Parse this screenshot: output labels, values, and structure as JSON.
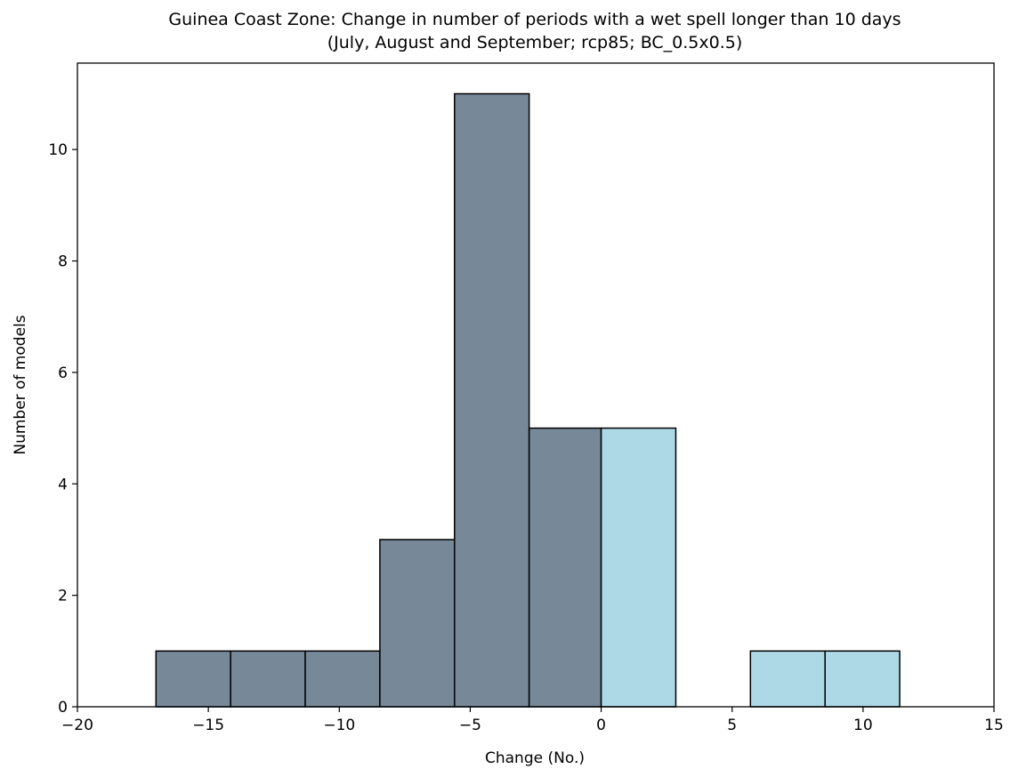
{
  "chart_data": {
    "type": "bar",
    "title": "Guinea Coast Zone: Change in number of periods with a wet spell longer than 10 days",
    "subtitle": "(July, August and September; rcp85; BC_0.5x0.5)",
    "xlabel": "Change (No.)",
    "ylabel": "Number of models",
    "xlim": [
      -20,
      15
    ],
    "ylim": [
      0,
      11.55
    ],
    "xticks": [
      -20,
      -15,
      -10,
      -5,
      0,
      5,
      10,
      15
    ],
    "xtick_labels": [
      "−20",
      "−15",
      "−10",
      "−5",
      "0",
      "5",
      "10",
      "15"
    ],
    "yticks": [
      0,
      2,
      4,
      6,
      8,
      10
    ],
    "ytick_labels": [
      "0",
      "2",
      "4",
      "6",
      "8",
      "10"
    ],
    "grid": false,
    "colors": {
      "negative": "#778899",
      "positive": "#add8e6",
      "edge": "#000000"
    },
    "bins": [
      {
        "x0": -17.0,
        "x1": -14.15,
        "value": 1,
        "group": "negative"
      },
      {
        "x0": -14.15,
        "x1": -11.3,
        "value": 1,
        "group": "negative"
      },
      {
        "x0": -11.3,
        "x1": -8.45,
        "value": 1,
        "group": "negative"
      },
      {
        "x0": -8.45,
        "x1": -5.6,
        "value": 3,
        "group": "negative"
      },
      {
        "x0": -5.6,
        "x1": -2.75,
        "value": 11,
        "group": "negative"
      },
      {
        "x0": -2.75,
        "x1": 0.0,
        "value": 5,
        "group": "negative"
      },
      {
        "x0": 0.0,
        "x1": 2.85,
        "value": 5,
        "group": "positive"
      },
      {
        "x0": 2.85,
        "x1": 5.7,
        "value": 0,
        "group": "positive"
      },
      {
        "x0": 5.7,
        "x1": 8.55,
        "value": 1,
        "group": "positive"
      },
      {
        "x0": 8.55,
        "x1": 11.4,
        "value": 1,
        "group": "positive"
      }
    ]
  }
}
